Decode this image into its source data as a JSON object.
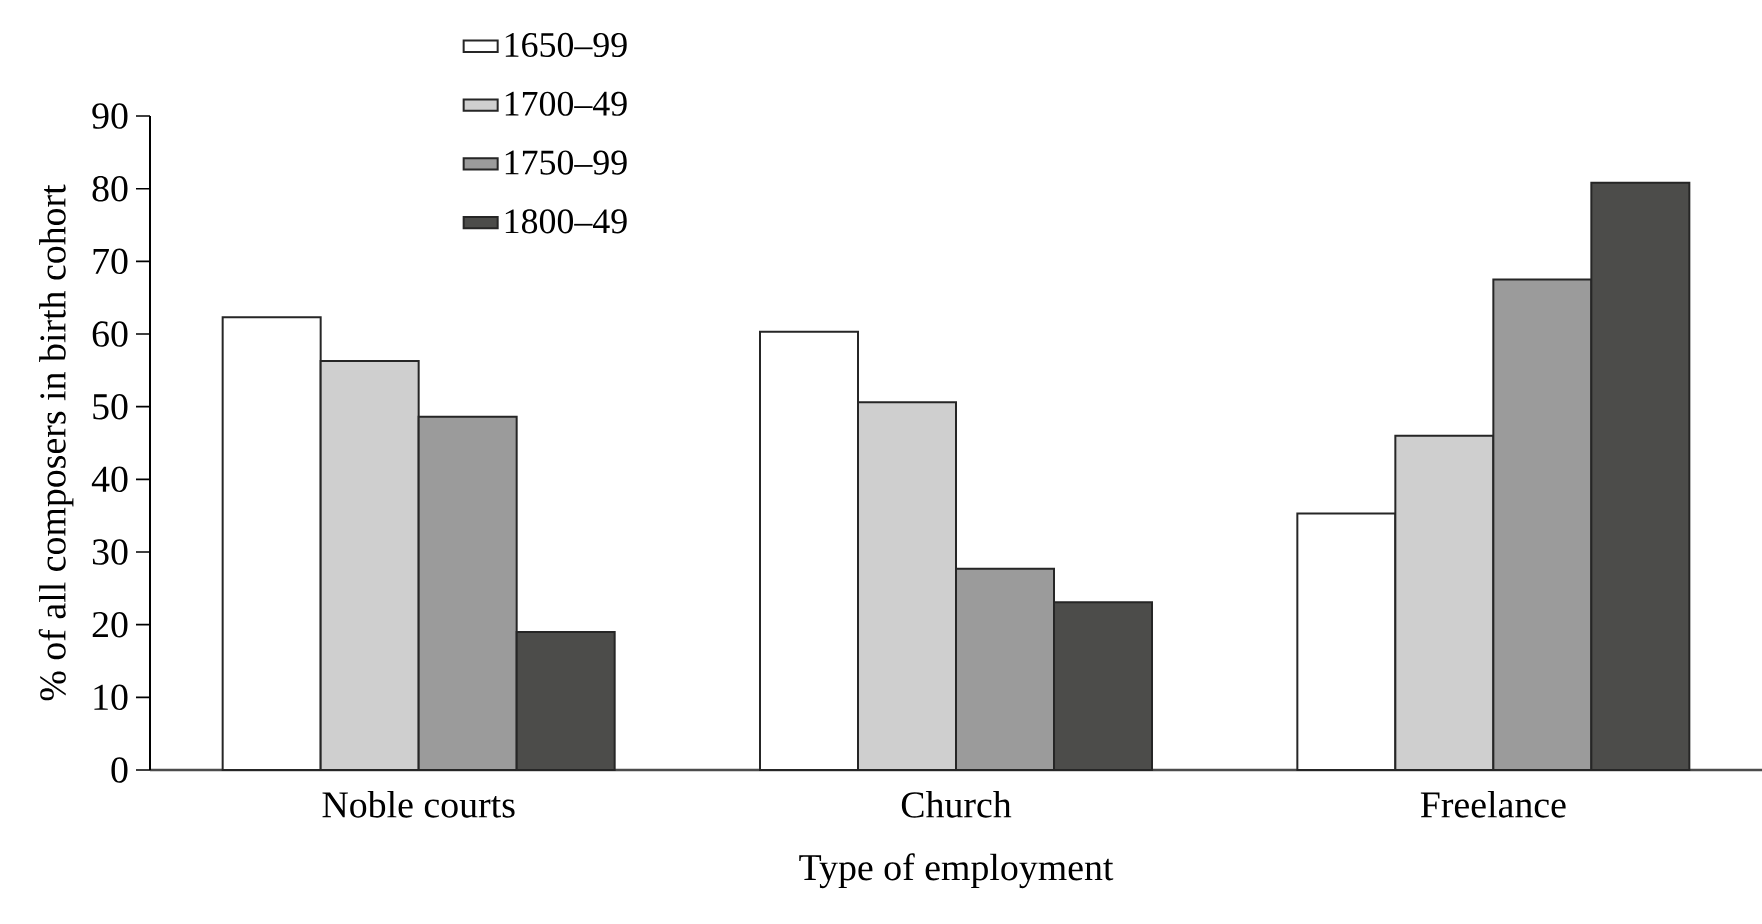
{
  "chart_data": {
    "type": "bar",
    "xlabel": "Type of employment",
    "ylabel": "% of all composers in birth cohort",
    "categories": [
      "Noble courts",
      "Church",
      "Freelance"
    ],
    "series": [
      {
        "name": "1650–99",
        "color": "#ffffff",
        "values": [
          62.3,
          60.3,
          35.3
        ]
      },
      {
        "name": "1700–49",
        "color": "#cfcfcf",
        "values": [
          56.3,
          50.6,
          46.0
        ]
      },
      {
        "name": "1750–99",
        "color": "#9b9b9b",
        "values": [
          48.6,
          27.7,
          67.5
        ]
      },
      {
        "name": "1800–49",
        "color": "#4c4c4a",
        "values": [
          19.0,
          23.1,
          80.8
        ]
      }
    ],
    "ylim": [
      0,
      90
    ],
    "yticks": [
      0,
      10,
      20,
      30,
      40,
      50,
      60,
      70,
      80,
      90
    ],
    "grid": false,
    "legend": "top"
  }
}
